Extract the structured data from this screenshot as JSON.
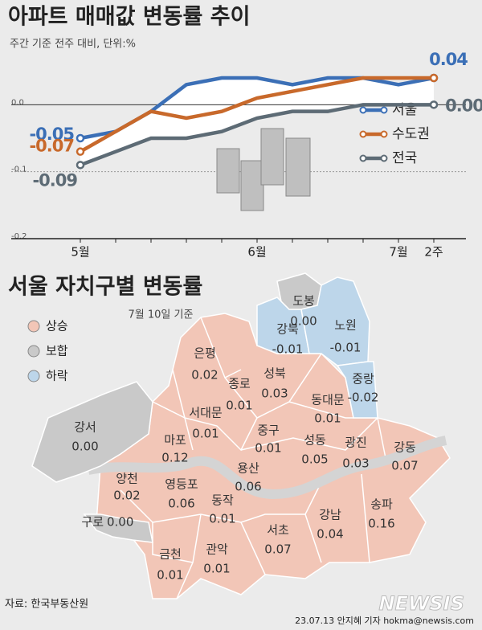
{
  "chart_data": {
    "type": "line",
    "title": "아파트 매매값 변동률 추이",
    "subtitle": "주간 기준 전주 대비, 단위:%",
    "categories": [
      "5월",
      null,
      null,
      null,
      null,
      "6월",
      null,
      null,
      null,
      "7월",
      "2주"
    ],
    "series": [
      {
        "name": "서울",
        "color": "#3b6fb6",
        "values": [
          -0.05,
          -0.04,
          -0.01,
          0.03,
          0.04,
          0.04,
          0.03,
          0.04,
          0.04,
          0.03,
          0.04
        ],
        "value_labels": [
          "-0.05",
          null,
          null,
          null,
          null,
          null,
          null,
          null,
          null,
          null,
          "0.04"
        ]
      },
      {
        "name": "수도권",
        "color": "#c8692b",
        "values": [
          -0.07,
          -0.04,
          -0.01,
          -0.02,
          -0.01,
          0.01,
          0.02,
          0.03,
          0.04,
          0.04,
          0.04
        ],
        "value_labels": [
          "-0.07",
          null,
          null,
          null,
          null,
          null,
          null,
          null,
          null,
          null,
          null
        ]
      },
      {
        "name": "전국",
        "color": "#5d6b75",
        "values": [
          -0.09,
          -0.07,
          -0.05,
          -0.05,
          -0.04,
          -0.02,
          -0.01,
          -0.01,
          0,
          0,
          0
        ],
        "value_labels": [
          "-0.09",
          null,
          null,
          null,
          null,
          null,
          null,
          null,
          null,
          null,
          "0.00"
        ]
      }
    ],
    "ylim": [
      -0.2,
      0.07
    ],
    "yticks": [
      {
        "value": 0,
        "label": "0.0"
      },
      {
        "value": -0.1,
        "label": "-0.1"
      },
      {
        "value": -0.2,
        "label": "-0.2"
      }
    ],
    "grid": true,
    "legend": "right"
  },
  "map": {
    "title": "서울 자치구별 변동률",
    "subtitle": "7월 10일 기준",
    "legend": [
      {
        "label": "상승",
        "color": "#f2c6b7"
      },
      {
        "label": "보합",
        "color": "#c9c9c9"
      },
      {
        "label": "하락",
        "color": "#bdd6ea"
      }
    ],
    "districts": [
      {
        "name": "강북",
        "value": -0.01,
        "label": "-0.01"
      },
      {
        "name": "도봉",
        "value": 0,
        "label": "0.00"
      },
      {
        "name": "노원",
        "value": -0.01,
        "label": "-0.01"
      },
      {
        "name": "중랑",
        "value": -0.02,
        "label": "-0.02"
      },
      {
        "name": "은평",
        "value": 0.02,
        "label": "0.02"
      },
      {
        "name": "성북",
        "value": 0.03,
        "label": "0.03"
      },
      {
        "name": "종로",
        "value": 0.01,
        "label": "0.01"
      },
      {
        "name": "동대문",
        "value": 0.01,
        "label": "0.01"
      },
      {
        "name": "서대문",
        "value": 0.01,
        "label": "0.01"
      },
      {
        "name": "강서",
        "value": 0,
        "label": "0.00"
      },
      {
        "name": "마포",
        "value": 0.12,
        "label": "0.12"
      },
      {
        "name": "중구",
        "value": 0.01,
        "label": "0.01"
      },
      {
        "name": "성동",
        "value": 0.05,
        "label": "0.05"
      },
      {
        "name": "광진",
        "value": 0.03,
        "label": "0.03"
      },
      {
        "name": "강동",
        "value": 0.07,
        "label": "0.07"
      },
      {
        "name": "양천",
        "value": 0.02,
        "label": "0.02"
      },
      {
        "name": "영등포",
        "value": 0.06,
        "label": "0.06"
      },
      {
        "name": "용산",
        "value": 0.06,
        "label": "0.06"
      },
      {
        "name": "동작",
        "value": 0.01,
        "label": "0.01"
      },
      {
        "name": "구로",
        "value": 0,
        "label": "0.00"
      },
      {
        "name": "강남",
        "value": 0.04,
        "label": "0.04"
      },
      {
        "name": "송파",
        "value": 0.16,
        "label": "0.16"
      },
      {
        "name": "서초",
        "value": 0.07,
        "label": "0.07"
      },
      {
        "name": "금천",
        "value": 0.01,
        "label": "0.01"
      },
      {
        "name": "관악",
        "value": 0.01,
        "label": "0.01"
      }
    ]
  },
  "footer": {
    "source": "자료: 한국부동산원",
    "credit": "23.07.13 안지혜 기자 hokma@newsis.com",
    "logo": "NEWSIS"
  }
}
